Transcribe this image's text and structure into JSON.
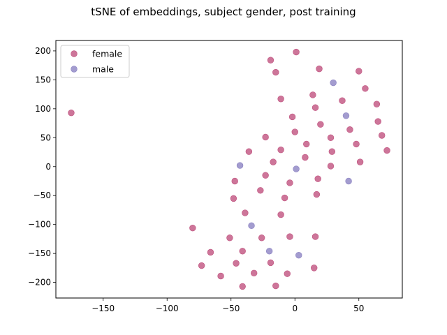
{
  "chart_data": {
    "type": "scatter",
    "title": "tSNE of embeddings, subject gender, post training",
    "xlabel": "",
    "ylabel": "",
    "xlim": [
      -187,
      84
    ],
    "ylim": [
      -227,
      218
    ],
    "xticks": [
      -150,
      -100,
      -50,
      0,
      50
    ],
    "yticks": [
      -200,
      -150,
      -100,
      -50,
      0,
      50,
      100,
      150,
      200
    ],
    "x_tick_labels": [
      "−150",
      "−100",
      "−50",
      "0",
      "50"
    ],
    "y_tick_labels": [
      "−200",
      "−150",
      "−100",
      "−50",
      "0",
      "50",
      "100",
      "150",
      "200"
    ],
    "grid": false,
    "legend_position": "upper-left",
    "series": [
      {
        "name": "female",
        "color": "#c0537f",
        "points": [
          [
            -175,
            93
          ],
          [
            -19,
            184
          ],
          [
            1,
            198
          ],
          [
            -15,
            163
          ],
          [
            19,
            169
          ],
          [
            50,
            165
          ],
          [
            14,
            124
          ],
          [
            55,
            135
          ],
          [
            -11,
            117
          ],
          [
            37,
            114
          ],
          [
            16,
            102
          ],
          [
            64,
            108
          ],
          [
            -2,
            86
          ],
          [
            65,
            78
          ],
          [
            20,
            73
          ],
          [
            43,
            64
          ],
          [
            0,
            60
          ],
          [
            68,
            54
          ],
          [
            -23,
            51
          ],
          [
            28,
            50
          ],
          [
            48,
            39
          ],
          [
            9,
            39
          ],
          [
            72,
            28
          ],
          [
            -36,
            26
          ],
          [
            -11,
            29
          ],
          [
            29,
            26
          ],
          [
            8,
            16
          ],
          [
            -17,
            8
          ],
          [
            51,
            8
          ],
          [
            28,
            1
          ],
          [
            -23,
            -15
          ],
          [
            18,
            -21
          ],
          [
            -47,
            -25
          ],
          [
            -4,
            -28
          ],
          [
            -27,
            -41
          ],
          [
            17,
            -48
          ],
          [
            -48,
            -55
          ],
          [
            -8,
            -54
          ],
          [
            -39,
            -80
          ],
          [
            -11,
            -83
          ],
          [
            -80,
            -106
          ],
          [
            -51,
            -123
          ],
          [
            -26,
            -123
          ],
          [
            -4,
            -121
          ],
          [
            16,
            -121
          ],
          [
            -66,
            -148
          ],
          [
            -41,
            -146
          ],
          [
            -73,
            -171
          ],
          [
            -46,
            -167
          ],
          [
            -19,
            -166
          ],
          [
            15,
            -175
          ],
          [
            -58,
            -189
          ],
          [
            -32,
            -184
          ],
          [
            -6,
            -185
          ],
          [
            -41,
            -207
          ],
          [
            -15,
            -206
          ]
        ]
      },
      {
        "name": "male",
        "color": "#8c83c3",
        "points": [
          [
            30,
            145
          ],
          [
            40,
            88
          ],
          [
            -43,
            2
          ],
          [
            1,
            -4
          ],
          [
            42,
            -25
          ],
          [
            -34,
            -102
          ],
          [
            -20,
            -146
          ],
          [
            3,
            -153
          ]
        ]
      }
    ]
  }
}
